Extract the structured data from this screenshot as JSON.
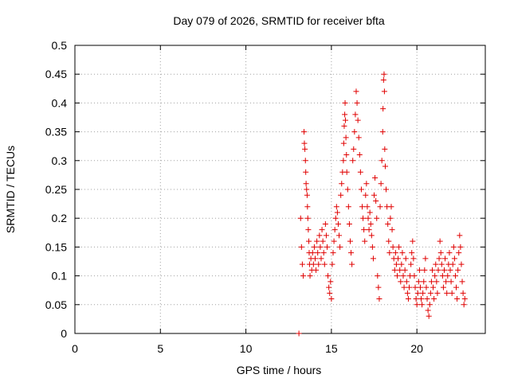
{
  "chart_data": {
    "type": "scatter",
    "title": "Day 079 of 2026, SRMTID for receiver bfta",
    "xlabel": "GPS time / hours",
    "ylabel": "SRMTID / TECUs",
    "xlim": [
      0,
      24
    ],
    "ylim": [
      0,
      0.5
    ],
    "xticks": [
      0,
      5,
      10,
      15,
      20
    ],
    "xtick_labels": [
      "0",
      "5",
      "10",
      "15",
      "20"
    ],
    "yticks": [
      0,
      0.05,
      0.1,
      0.15,
      0.2,
      0.25,
      0.3,
      0.35,
      0.4,
      0.45,
      0.5
    ],
    "ytick_labels": [
      "0",
      "0.05",
      "0.1",
      "0.15",
      "0.2",
      "0.25",
      "0.3",
      "0.35",
      "0.4",
      "0.45",
      "0.5"
    ],
    "grid": true,
    "marker": "plus",
    "color": "#e00000",
    "series": [
      {
        "name": "SRMTID",
        "points": [
          [
            13.1,
            0.0
          ],
          [
            13.2,
            0.2
          ],
          [
            13.25,
            0.15
          ],
          [
            13.3,
            0.12
          ],
          [
            13.35,
            0.1
          ],
          [
            13.4,
            0.35
          ],
          [
            13.42,
            0.33
          ],
          [
            13.45,
            0.32
          ],
          [
            13.48,
            0.3
          ],
          [
            13.5,
            0.28
          ],
          [
            13.52,
            0.26
          ],
          [
            13.55,
            0.25
          ],
          [
            13.58,
            0.24
          ],
          [
            13.6,
            0.22
          ],
          [
            13.62,
            0.2
          ],
          [
            13.65,
            0.18
          ],
          [
            13.68,
            0.16
          ],
          [
            13.7,
            0.14
          ],
          [
            13.72,
            0.12
          ],
          [
            13.75,
            0.1
          ],
          [
            13.8,
            0.13
          ],
          [
            13.85,
            0.11
          ],
          [
            13.9,
            0.14
          ],
          [
            13.95,
            0.12
          ],
          [
            14.0,
            0.15
          ],
          [
            14.05,
            0.13
          ],
          [
            14.1,
            0.11
          ],
          [
            14.15,
            0.16
          ],
          [
            14.2,
            0.14
          ],
          [
            14.25,
            0.12
          ],
          [
            14.3,
            0.17
          ],
          [
            14.35,
            0.15
          ],
          [
            14.4,
            0.13
          ],
          [
            14.45,
            0.18
          ],
          [
            14.5,
            0.16
          ],
          [
            14.55,
            0.14
          ],
          [
            14.6,
            0.12
          ],
          [
            14.65,
            0.19
          ],
          [
            14.7,
            0.17
          ],
          [
            14.75,
            0.15
          ],
          [
            14.8,
            0.1
          ],
          [
            14.85,
            0.08
          ],
          [
            14.9,
            0.07
          ],
          [
            14.95,
            0.09
          ],
          [
            15.0,
            0.06
          ],
          [
            15.05,
            0.12
          ],
          [
            15.1,
            0.14
          ],
          [
            15.15,
            0.16
          ],
          [
            15.2,
            0.18
          ],
          [
            15.25,
            0.2
          ],
          [
            15.3,
            0.22
          ],
          [
            15.35,
            0.21
          ],
          [
            15.4,
            0.19
          ],
          [
            15.45,
            0.17
          ],
          [
            15.5,
            0.15
          ],
          [
            15.55,
            0.24
          ],
          [
            15.6,
            0.26
          ],
          [
            15.65,
            0.28
          ],
          [
            15.7,
            0.3
          ],
          [
            15.72,
            0.33
          ],
          [
            15.75,
            0.36
          ],
          [
            15.78,
            0.38
          ],
          [
            15.8,
            0.4
          ],
          [
            15.82,
            0.37
          ],
          [
            15.85,
            0.34
          ],
          [
            15.88,
            0.31
          ],
          [
            15.9,
            0.28
          ],
          [
            15.95,
            0.25
          ],
          [
            16.0,
            0.22
          ],
          [
            16.05,
            0.19
          ],
          [
            16.1,
            0.16
          ],
          [
            16.15,
            0.14
          ],
          [
            16.2,
            0.12
          ],
          [
            16.25,
            0.3
          ],
          [
            16.3,
            0.32
          ],
          [
            16.35,
            0.35
          ],
          [
            16.4,
            0.38
          ],
          [
            16.45,
            0.42
          ],
          [
            16.5,
            0.4
          ],
          [
            16.55,
            0.37
          ],
          [
            16.6,
            0.34
          ],
          [
            16.65,
            0.31
          ],
          [
            16.7,
            0.28
          ],
          [
            16.75,
            0.25
          ],
          [
            16.8,
            0.22
          ],
          [
            16.85,
            0.2
          ],
          [
            16.9,
            0.18
          ],
          [
            16.95,
            0.16
          ],
          [
            17.0,
            0.24
          ],
          [
            17.05,
            0.26
          ],
          [
            17.1,
            0.22
          ],
          [
            17.15,
            0.2
          ],
          [
            17.2,
            0.18
          ],
          [
            17.25,
            0.21
          ],
          [
            17.3,
            0.19
          ],
          [
            17.35,
            0.17
          ],
          [
            17.4,
            0.15
          ],
          [
            17.45,
            0.13
          ],
          [
            17.5,
            0.24
          ],
          [
            17.55,
            0.27
          ],
          [
            17.6,
            0.23
          ],
          [
            17.65,
            0.2
          ],
          [
            17.7,
            0.1
          ],
          [
            17.75,
            0.08
          ],
          [
            17.8,
            0.06
          ],
          [
            17.85,
            0.22
          ],
          [
            17.9,
            0.26
          ],
          [
            17.95,
            0.3
          ],
          [
            18.0,
            0.35
          ],
          [
            18.02,
            0.39
          ],
          [
            18.05,
            0.44
          ],
          [
            18.08,
            0.45
          ],
          [
            18.1,
            0.42
          ],
          [
            18.12,
            0.32
          ],
          [
            18.15,
            0.29
          ],
          [
            18.2,
            0.25
          ],
          [
            18.25,
            0.22
          ],
          [
            18.3,
            0.19
          ],
          [
            18.35,
            0.16
          ],
          [
            18.4,
            0.14
          ],
          [
            18.45,
            0.2
          ],
          [
            18.5,
            0.22
          ],
          [
            18.55,
            0.18
          ],
          [
            18.6,
            0.15
          ],
          [
            18.65,
            0.13
          ],
          [
            18.7,
            0.11
          ],
          [
            18.75,
            0.14
          ],
          [
            18.8,
            0.12
          ],
          [
            18.85,
            0.1
          ],
          [
            18.9,
            0.13
          ],
          [
            18.95,
            0.15
          ],
          [
            19.0,
            0.11
          ],
          [
            19.05,
            0.09
          ],
          [
            19.1,
            0.12
          ],
          [
            19.15,
            0.14
          ],
          [
            19.2,
            0.1
          ],
          [
            19.25,
            0.08
          ],
          [
            19.3,
            0.11
          ],
          [
            19.35,
            0.13
          ],
          [
            19.4,
            0.09
          ],
          [
            19.45,
            0.07
          ],
          [
            19.5,
            0.06
          ],
          [
            19.55,
            0.08
          ],
          [
            19.6,
            0.1
          ],
          [
            19.65,
            0.12
          ],
          [
            19.7,
            0.14
          ],
          [
            19.75,
            0.16
          ],
          [
            19.8,
            0.13
          ],
          [
            19.85,
            0.1
          ],
          [
            19.9,
            0.08
          ],
          [
            19.95,
            0.06
          ],
          [
            20.0,
            0.05
          ],
          [
            20.05,
            0.07
          ],
          [
            20.1,
            0.09
          ],
          [
            20.15,
            0.11
          ],
          [
            20.2,
            0.08
          ],
          [
            20.25,
            0.06
          ],
          [
            20.3,
            0.05
          ],
          [
            20.35,
            0.07
          ],
          [
            20.4,
            0.09
          ],
          [
            20.45,
            0.11
          ],
          [
            20.5,
            0.13
          ],
          [
            20.55,
            0.08
          ],
          [
            20.6,
            0.06
          ],
          [
            20.65,
            0.04
          ],
          [
            20.7,
            0.03
          ],
          [
            20.75,
            0.05
          ],
          [
            20.8,
            0.07
          ],
          [
            20.85,
            0.09
          ],
          [
            20.9,
            0.11
          ],
          [
            20.95,
            0.08
          ],
          [
            21.0,
            0.06
          ],
          [
            21.05,
            0.1
          ],
          [
            21.1,
            0.12
          ],
          [
            21.15,
            0.09
          ],
          [
            21.2,
            0.07
          ],
          [
            21.25,
            0.11
          ],
          [
            21.3,
            0.13
          ],
          [
            21.35,
            0.16
          ],
          [
            21.4,
            0.14
          ],
          [
            21.45,
            0.12
          ],
          [
            21.5,
            0.1
          ],
          [
            21.55,
            0.08
          ],
          [
            21.6,
            0.11
          ],
          [
            21.65,
            0.13
          ],
          [
            21.7,
            0.09
          ],
          [
            21.75,
            0.07
          ],
          [
            21.8,
            0.1
          ],
          [
            21.85,
            0.12
          ],
          [
            21.9,
            0.14
          ],
          [
            21.95,
            0.11
          ],
          [
            22.0,
            0.09
          ],
          [
            22.05,
            0.07
          ],
          [
            22.1,
            0.12
          ],
          [
            22.15,
            0.15
          ],
          [
            22.2,
            0.13
          ],
          [
            22.25,
            0.1
          ],
          [
            22.3,
            0.08
          ],
          [
            22.35,
            0.06
          ],
          [
            22.4,
            0.11
          ],
          [
            22.45,
            0.14
          ],
          [
            22.5,
            0.17
          ],
          [
            22.55,
            0.15
          ],
          [
            22.6,
            0.12
          ],
          [
            22.65,
            0.09
          ],
          [
            22.7,
            0.07
          ],
          [
            22.75,
            0.05
          ],
          [
            22.8,
            0.06
          ]
        ]
      }
    ]
  }
}
